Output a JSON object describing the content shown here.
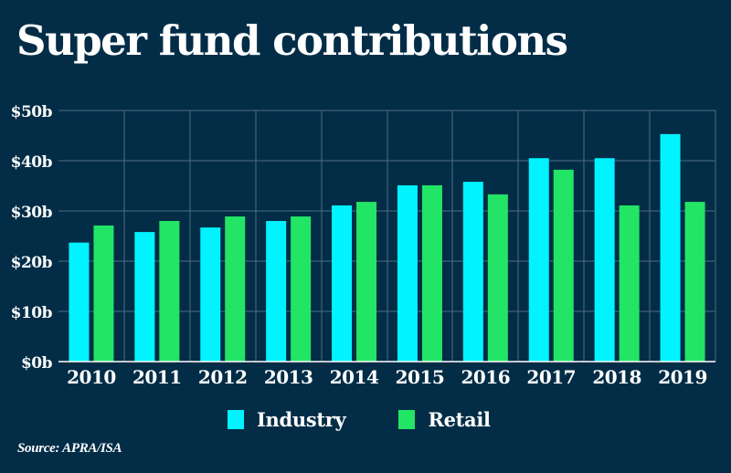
{
  "colors": {
    "background": "#032d47",
    "industry": "#00f3ff",
    "retail": "#22e565",
    "grid": "#4f6b80",
    "axis": "#ffffff"
  },
  "chart_data": {
    "type": "bar",
    "title": "Super fund contributions",
    "xlabel": "",
    "ylabel": "",
    "categories": [
      "2010",
      "2011",
      "2012",
      "2013",
      "2014",
      "2015",
      "2016",
      "2017",
      "2018",
      "2019"
    ],
    "series": [
      {
        "name": "Industry",
        "values": [
          23.7,
          25.8,
          26.7,
          28.0,
          31.1,
          35.1,
          35.8,
          40.5,
          40.5,
          45.3
        ]
      },
      {
        "name": "Retail",
        "values": [
          27.1,
          28.0,
          28.9,
          28.9,
          31.8,
          35.1,
          33.3,
          38.2,
          31.1,
          31.8
        ]
      }
    ],
    "ylim": [
      0,
      50
    ],
    "yticks": [
      0,
      10,
      20,
      30,
      40,
      50
    ],
    "ytick_labels": [
      "$0b",
      "$10b",
      "$20b",
      "$30b",
      "$40b",
      "$50b"
    ],
    "grid": true,
    "legend_position": "bottom-center",
    "source": "Source: APRA/ISA"
  }
}
